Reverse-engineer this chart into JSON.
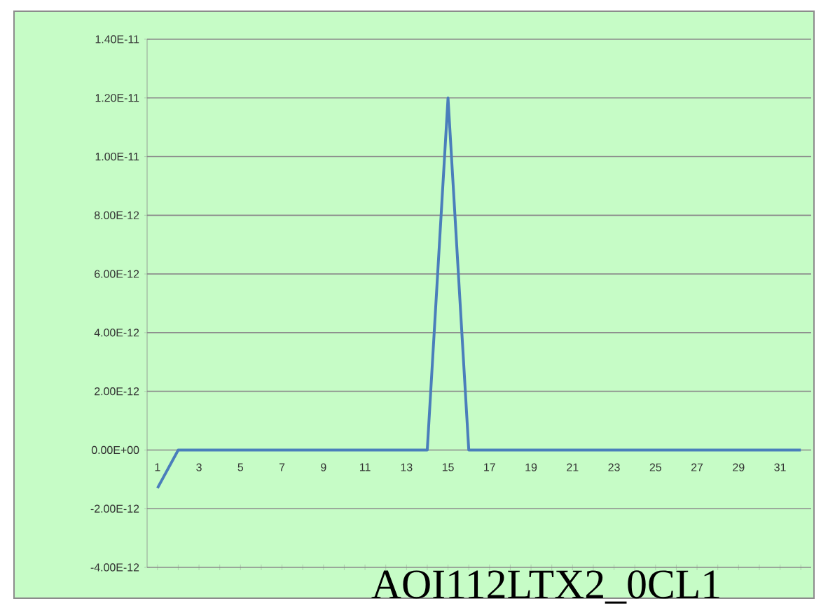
{
  "chart_data": {
    "type": "line",
    "title": "AOI112LTX2_0CL1",
    "categories": [
      "1",
      null,
      "3",
      null,
      "5",
      null,
      "7",
      null,
      "9",
      null,
      "11",
      null,
      "13",
      null,
      "15",
      null,
      "17",
      null,
      "19",
      null,
      "21",
      null,
      "23",
      null,
      "25",
      null,
      "27",
      null,
      "29",
      null,
      "31",
      null
    ],
    "series": [
      {
        "color": "#4a7ebb",
        "values": [
          -1.3e-12,
          0,
          0,
          0,
          0,
          0,
          0,
          0,
          0,
          0,
          0,
          0,
          0,
          0,
          1.2e-11,
          0,
          0,
          0,
          0,
          0,
          0,
          0,
          0,
          0,
          0,
          0,
          0,
          0,
          0,
          0,
          0,
          0
        ]
      }
    ],
    "ylim": [
      -4e-12,
      1.4e-11
    ],
    "yticks": [
      {
        "value": -4e-12,
        "label": "-4.00E-12"
      },
      {
        "value": -2e-12,
        "label": "-2.00E-12"
      },
      {
        "value": 0,
        "label": "0.00E+00"
      },
      {
        "value": 2e-12,
        "label": "2.00E-12"
      },
      {
        "value": 4e-12,
        "label": "4.00E-12"
      },
      {
        "value": 6e-12,
        "label": "6.00E-12"
      },
      {
        "value": 8e-12,
        "label": "8.00E-12"
      },
      {
        "value": 1e-11,
        "label": "1.00E-11"
      },
      {
        "value": 1.2e-11,
        "label": "1.20E-11"
      },
      {
        "value": 1.4e-11,
        "label": "1.40E-11"
      }
    ],
    "grid": "y",
    "marker": "none",
    "line_style": "solid"
  }
}
